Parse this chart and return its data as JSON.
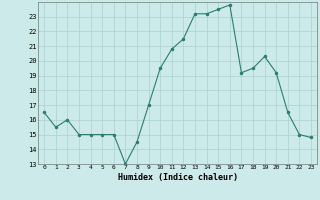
{
  "x": [
    0,
    1,
    2,
    3,
    4,
    5,
    6,
    7,
    8,
    9,
    10,
    11,
    12,
    13,
    14,
    15,
    16,
    17,
    18,
    19,
    20,
    21,
    22,
    23
  ],
  "y": [
    16.5,
    15.5,
    16.0,
    15.0,
    15.0,
    15.0,
    15.0,
    13.0,
    14.5,
    17.0,
    19.5,
    20.8,
    21.5,
    23.2,
    23.2,
    23.5,
    23.8,
    19.2,
    19.5,
    20.3,
    19.2,
    16.5,
    15.0,
    14.8
  ],
  "xlabel": "Humidex (Indice chaleur)",
  "ylim": [
    13,
    24
  ],
  "xlim": [
    -0.5,
    23.5
  ],
  "yticks": [
    13,
    14,
    15,
    16,
    17,
    18,
    19,
    20,
    21,
    22,
    23
  ],
  "xticks": [
    0,
    1,
    2,
    3,
    4,
    5,
    6,
    7,
    8,
    9,
    10,
    11,
    12,
    13,
    14,
    15,
    16,
    17,
    18,
    19,
    20,
    21,
    22,
    23
  ],
  "line_color": "#2e7d6e",
  "bg_color": "#cceaea",
  "grid_color": "#aacfcf"
}
